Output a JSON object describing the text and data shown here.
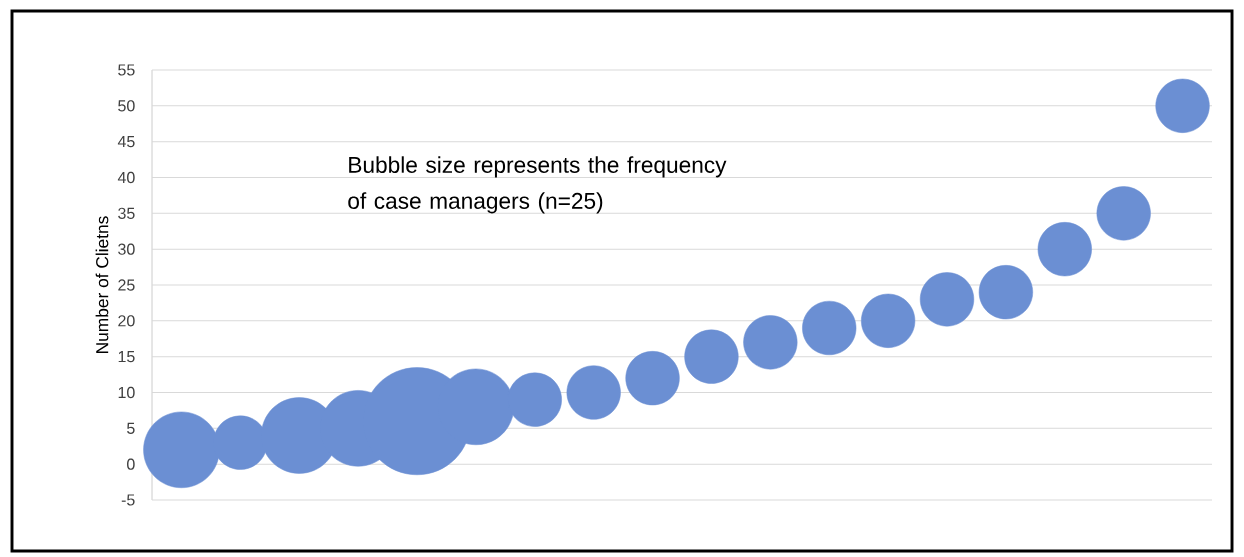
{
  "chart_data": {
    "type": "bubble",
    "ylabel": "Number of Clietns",
    "annotations": [
      "Bubble size represents the frequency of case managers (n=25)"
    ],
    "categories": [
      null,
      null,
      null,
      null,
      null,
      null,
      null,
      null,
      null,
      null,
      null,
      null,
      null,
      null,
      null,
      null,
      null,
      null
    ],
    "values": [
      2,
      3,
      4,
      5,
      6,
      8,
      9,
      10,
      12,
      15,
      17,
      19,
      20,
      23,
      24,
      30,
      35,
      50
    ],
    "sizes": [
      0.5,
      0.25,
      0.5,
      0.5,
      1,
      0.5,
      0.25,
      0.25,
      0.25,
      0.25,
      0.25,
      0.25,
      0.25,
      0.25,
      0.25,
      0.25,
      0.25,
      0.25
    ],
    "color": "#6b8fd3",
    "ylim": [
      -5,
      55
    ],
    "yticks": [
      -5,
      0,
      5,
      10,
      15,
      20,
      25,
      30,
      35,
      40,
      45,
      50,
      55
    ],
    "grid": "y",
    "tick_labels": "y",
    "marker": "circle"
  }
}
